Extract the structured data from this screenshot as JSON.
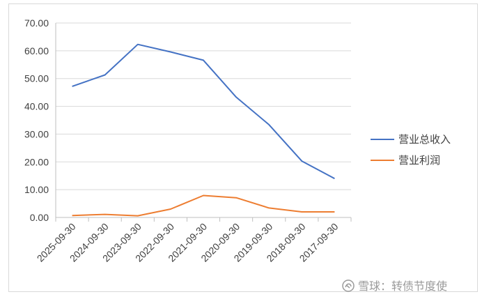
{
  "chart_data": {
    "type": "line",
    "categories": [
      "2025-09-30",
      "2024-09-30",
      "2023-09-30",
      "2022-09-30",
      "2021-09-30",
      "2020-09-30",
      "2019-09-30",
      "2018-09-30",
      "2017-09-30"
    ],
    "series": [
      {
        "name": "营业总收入",
        "color": "#4472c4",
        "values": [
          47.2,
          51.3,
          62.3,
          59.6,
          56.6,
          43.3,
          33.4,
          20.3,
          14.0
        ]
      },
      {
        "name": "营业利润",
        "color": "#ed7d31",
        "values": [
          0.7,
          1.1,
          0.6,
          3.0,
          7.9,
          7.1,
          3.4,
          2.0,
          2.0
        ]
      }
    ],
    "y_ticks": [
      "0.00",
      "10.00",
      "20.00",
      "30.00",
      "40.00",
      "50.00",
      "60.00",
      "70.00"
    ],
    "ylim": [
      0,
      70
    ],
    "grid": true,
    "legend_position": "right"
  },
  "watermark": {
    "icon": "snowball-logo-icon",
    "text": "雪球：转债节度使"
  }
}
